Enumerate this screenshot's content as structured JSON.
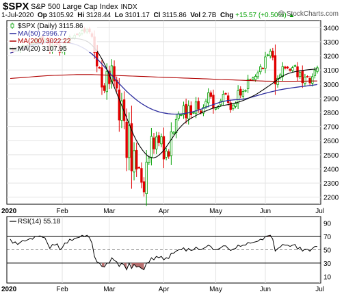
{
  "header": {
    "symbol": "$SPX",
    "name": "S&P 500 Large Cap Index",
    "exchange": "INDX",
    "date": "1-Jul-2020",
    "op_label": "Op",
    "op": "3105.92",
    "hi_label": "Hi",
    "hi": "3128.44",
    "lo_label": "Lo",
    "lo": "3101.17",
    "cl_label": "Cl",
    "cl": "3115.86",
    "vol_label": "Vol",
    "vol": "2.7B",
    "chg_label": "Chg",
    "chg": "+15.57 (+0.50%)",
    "chg_arrow": "▲"
  },
  "watermark": "@ StockCharts.com",
  "colors": {
    "up": "#00a000",
    "down": "#e00000",
    "ma50": "#2b2b9e",
    "ma200": "#b00000",
    "ma20": "#000000",
    "rsi_fill": "#b06060"
  },
  "chart_data": [
    {
      "type": "candlestick",
      "legend": [
        {
          "label": "$SPX (Daily) 3115.86",
          "icon": "candle-icon"
        },
        {
          "label": "MA(50) 2996.77",
          "color": "#2b2b9e"
        },
        {
          "label": "MA(200) 3022.22",
          "color": "#b00000"
        },
        {
          "label": "MA(20) 3107.95",
          "color": "#000000"
        }
      ],
      "ylim": [
        2150,
        3450
      ],
      "yticks": [
        2200,
        2300,
        2400,
        2500,
        2600,
        2700,
        2800,
        2900,
        3000,
        3100,
        3200,
        3300,
        3400
      ],
      "x_labels": [
        {
          "label": "2020",
          "day": 0,
          "bold": true
        },
        {
          "label": "Feb",
          "day": 21
        },
        {
          "label": "Mar",
          "day": 40
        },
        {
          "label": "Apr",
          "day": 62
        },
        {
          "label": "May",
          "day": 83
        },
        {
          "label": "Jun",
          "day": 103
        },
        {
          "label": "Jul",
          "day": 125
        }
      ],
      "series_close": [
        3257,
        3235,
        3246,
        3237,
        3253,
        3274,
        3265,
        3275,
        3283,
        3289,
        3316,
        3317,
        3329,
        3321,
        3320,
        3295,
        3243,
        3276,
        3273,
        3284,
        3226,
        3249,
        3298,
        3297,
        3334,
        3327,
        3345,
        3352,
        3357,
        3380,
        3373,
        3386,
        3370,
        3337,
        3225,
        3128,
        3116,
        2979,
        2954,
        3090,
        3003,
        3130,
        3023,
        2972,
        2746,
        2882,
        2741,
        2480,
        2711,
        2386,
        2529,
        2398,
        2409,
        2305,
        2237,
        2447,
        2476,
        2630,
        2541,
        2626,
        2585,
        2627,
        2470,
        2527,
        2489,
        2663,
        2659,
        2750,
        2790,
        2783,
        2847,
        2761,
        2846,
        2783,
        2799,
        2874,
        2823,
        2797,
        2836,
        2878,
        2939,
        2912,
        2830,
        2830,
        2842,
        2881,
        2929,
        2930,
        2870,
        2820,
        2852,
        2863,
        2954,
        2922,
        2948,
        2955,
        3036,
        3030,
        3044,
        3055,
        3080,
        3123,
        3112,
        3193,
        3207,
        3232,
        3190,
        3002,
        3041,
        3066,
        3124,
        3113,
        3115,
        3097,
        3117,
        3131,
        3051,
        3083,
        3010,
        3050,
        3053,
        3009,
        3053,
        3100,
        3116
      ],
      "ma50": [
        3220,
        3228,
        3236,
        3244,
        3252,
        3258,
        3264,
        3270,
        3276,
        3281,
        3286,
        3290,
        3294,
        3297,
        3299,
        3300,
        3299,
        3298,
        3296,
        3294,
        3290,
        3286,
        3280,
        3272,
        3262,
        3250,
        3236,
        3220,
        3202,
        3182,
        3160,
        3136,
        3112,
        3088,
        3064,
        3040,
        3016,
        2993,
        2971,
        2950,
        2930,
        2912,
        2894,
        2878,
        2863,
        2850,
        2838,
        2827,
        2818,
        2810,
        2803,
        2798,
        2794,
        2791,
        2789,
        2788,
        2788,
        2789,
        2791,
        2794,
        2798,
        2803,
        2809,
        2816,
        2823,
        2831,
        2839,
        2847,
        2855,
        2862,
        2869,
        2875,
        2880,
        2884,
        2887,
        2889,
        2890,
        2891,
        2893,
        2897,
        2902,
        2908,
        2914,
        2920,
        2926,
        2932,
        2938,
        2943,
        2948,
        2953,
        2958,
        2962,
        2966,
        2969,
        2972,
        2975,
        2978,
        2981,
        2984,
        2986,
        2989,
        2991,
        2994,
        2997
      ],
      "ma200": [
        3040,
        3042,
        3044,
        3046,
        3048,
        3050,
        3052,
        3054,
        3056,
        3058,
        3060,
        3061,
        3062,
        3063,
        3064,
        3065,
        3066,
        3067,
        3068,
        3068,
        3068,
        3068,
        3068,
        3067,
        3066,
        3065,
        3064,
        3063,
        3062,
        3061,
        3060,
        3059,
        3058,
        3057,
        3056,
        3055,
        3054,
        3053,
        3052,
        3051,
        3050,
        3049,
        3048,
        3047,
        3046,
        3045,
        3044,
        3043,
        3042,
        3041,
        3040,
        3039,
        3038,
        3037,
        3036,
        3035,
        3034,
        3033,
        3032,
        3031,
        3030,
        3029,
        3028,
        3027,
        3026,
        3025,
        3024,
        3023,
        3022,
        3021,
        3021,
        3020,
        3020,
        3020,
        3020,
        3020,
        3020,
        3020,
        3021,
        3021,
        3021,
        3022,
        3022,
        3022
      ],
      "ma20": [
        3250,
        3254,
        3258,
        3262,
        3266,
        3270,
        3274,
        3278,
        3282,
        3286,
        3290,
        3294,
        3298,
        3302,
        3306,
        3309,
        3312,
        3314,
        3316,
        3318,
        3320,
        3322,
        3323,
        3322,
        3320,
        3316,
        3310,
        3300,
        3285,
        3264,
        3240,
        3210,
        3175,
        3135,
        3090,
        3040,
        2990,
        2940,
        2890,
        2840,
        2790,
        2740,
        2690,
        2640,
        2600,
        2565,
        2535,
        2510,
        2490,
        2480,
        2478,
        2485,
        2500,
        2520,
        2545,
        2575,
        2605,
        2635,
        2665,
        2690,
        2712,
        2730,
        2745,
        2758,
        2770,
        2781,
        2791,
        2800,
        2809,
        2817,
        2825,
        2832,
        2838,
        2843,
        2848,
        2852,
        2856,
        2860,
        2865,
        2870,
        2876,
        2883,
        2891,
        2900,
        2910,
        2920,
        2932,
        2945,
        2958,
        2972,
        2986,
        3000,
        3015,
        3030,
        3045,
        3058,
        3068,
        3076,
        3082,
        3087,
        3091,
        3094,
        3097,
        3100,
        3102,
        3104,
        3106,
        3108
      ]
    },
    {
      "type": "line",
      "legend": [
        {
          "label": "RSI(14) 55.18"
        }
      ],
      "ylim": [
        0,
        100
      ],
      "yticks": [
        10,
        30,
        50,
        70,
        90
      ],
      "levels": [
        30,
        50,
        70
      ],
      "x_labels": [
        {
          "label": "2020",
          "day": 0,
          "bold": true
        },
        {
          "label": "Feb",
          "day": 21
        },
        {
          "label": "Mar",
          "day": 40
        },
        {
          "label": "Apr",
          "day": 62
        },
        {
          "label": "May",
          "day": 83
        },
        {
          "label": "Jun",
          "day": 103
        },
        {
          "label": "Jul",
          "day": 125
        }
      ],
      "values": [
        66,
        60,
        62,
        58,
        61,
        64,
        63,
        65,
        67,
        66,
        70,
        70,
        71,
        69,
        68,
        60,
        52,
        58,
        57,
        59,
        50,
        53,
        60,
        60,
        66,
        64,
        67,
        68,
        69,
        72,
        70,
        72,
        68,
        60,
        40,
        32,
        30,
        25,
        24,
        30,
        30,
        38,
        34,
        32,
        25,
        30,
        27,
        20,
        30,
        22,
        28,
        24,
        25,
        22,
        20,
        30,
        31,
        38,
        35,
        40,
        38,
        40,
        35,
        38,
        37,
        45,
        45,
        48,
        50,
        50,
        53,
        48,
        52,
        49,
        50,
        54,
        51,
        50,
        52,
        54,
        57,
        55,
        50,
        50,
        51,
        53,
        56,
        56,
        52,
        49,
        51,
        52,
        57,
        55,
        57,
        57,
        61,
        60,
        61,
        62,
        63,
        66,
        65,
        70,
        71,
        72,
        66,
        48,
        52,
        54,
        58,
        57,
        57,
        55,
        57,
        58,
        51,
        54,
        48,
        51,
        51,
        48,
        52,
        55,
        55
      ]
    }
  ]
}
